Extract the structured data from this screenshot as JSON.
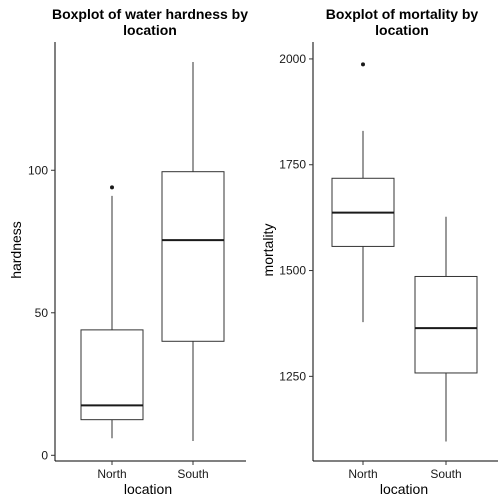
{
  "chart_data": [
    {
      "type": "boxplot",
      "title_lines": [
        "Boxplot of water hardness by",
        "location"
      ],
      "xlabel": "location",
      "ylabel": "hardness",
      "categories": [
        "North",
        "South"
      ],
      "ylim": [
        -2,
        145
      ],
      "yticks": [
        0,
        50,
        100
      ],
      "grid": false,
      "boxes": [
        {
          "category": "North",
          "whisker_low": 6,
          "q1": 12.5,
          "median": 17.5,
          "q3": 44,
          "whisker_high": 91,
          "outliers": [
            94
          ]
        },
        {
          "category": "South",
          "whisker_low": 5,
          "q1": 40,
          "median": 75.5,
          "q3": 99.5,
          "whisker_high": 138,
          "outliers": []
        }
      ]
    },
    {
      "type": "boxplot",
      "title_lines": [
        "Boxplot of mortality by",
        "location"
      ],
      "xlabel": "location",
      "ylabel": "mortality",
      "categories": [
        "North",
        "South"
      ],
      "ylim": [
        1050,
        2040
      ],
      "yticks": [
        1250,
        1500,
        1750,
        2000
      ],
      "grid": false,
      "boxes": [
        {
          "category": "North",
          "whisker_low": 1378,
          "q1": 1557,
          "median": 1637,
          "q3": 1718,
          "whisker_high": 1830,
          "outliers": [
            1987
          ]
        },
        {
          "category": "South",
          "whisker_low": 1096,
          "q1": 1258,
          "median": 1364,
          "q3": 1486,
          "whisker_high": 1627,
          "outliers": []
        }
      ]
    }
  ]
}
